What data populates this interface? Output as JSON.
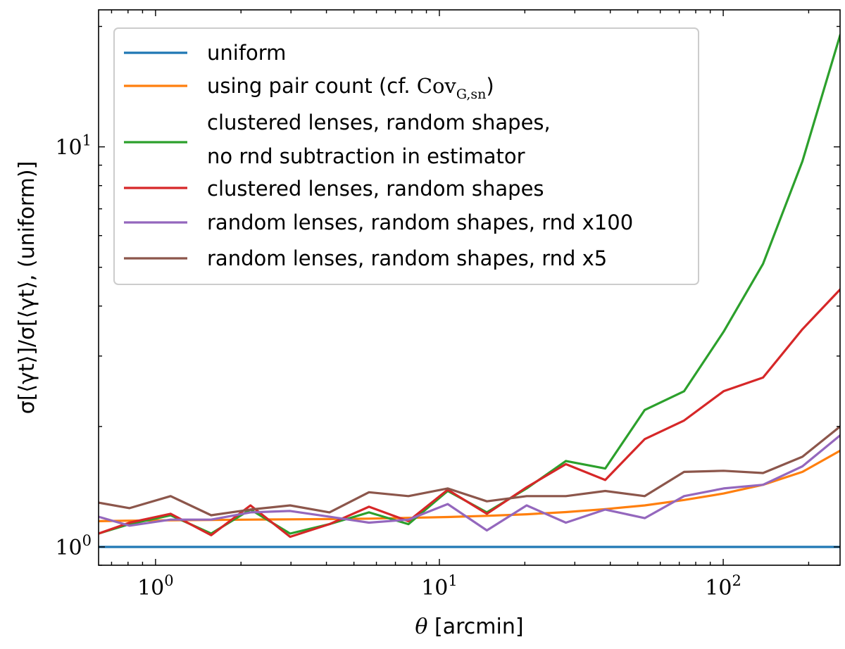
{
  "chart_data": {
    "type": "line",
    "xscale": "log",
    "yscale": "log",
    "xlim": [
      0.63,
      258
    ],
    "ylim": [
      0.9,
      22
    ],
    "x_ticks": [
      {
        "value": 1,
        "label_base": "10",
        "label_exp": "0"
      },
      {
        "value": 10,
        "label_base": "10",
        "label_exp": "1"
      },
      {
        "value": 100,
        "label_base": "10",
        "label_exp": "2"
      }
    ],
    "y_ticks": [
      {
        "value": 1,
        "label_base": "10",
        "label_exp": "0"
      },
      {
        "value": 10,
        "label_base": "10",
        "label_exp": "1"
      }
    ],
    "xlabel": {
      "symbol": "θ",
      "text": "[arcmin]"
    },
    "ylabel": "σ[⟨γt⟩]/σ[⟨γt⟩, (uniform)]",
    "grid": false,
    "legend_position": "top-left",
    "x": [
      0.63,
      0.81,
      1.13,
      1.57,
      2.16,
      2.98,
      4.1,
      5.65,
      7.78,
      10.7,
      14.7,
      20.3,
      27.9,
      38.4,
      52.9,
      72.8,
      100.3,
      138.1,
      190.1,
      258
    ],
    "series": [
      {
        "name": "uniform",
        "color": "#1f77b4",
        "values": [
          1,
          1,
          1,
          1,
          1,
          1,
          1,
          1,
          1,
          1,
          1,
          1,
          1,
          1,
          1,
          1,
          1,
          1,
          1,
          1
        ]
      },
      {
        "name": "using pair count (cf. ",
        "name_math": "Cov",
        "name_sub": "G,sn",
        "name_tail": ")",
        "color": "#ff7f0e",
        "values": [
          1.16,
          1.163,
          1.166,
          1.168,
          1.17,
          1.172,
          1.174,
          1.177,
          1.182,
          1.188,
          1.196,
          1.207,
          1.222,
          1.243,
          1.27,
          1.31,
          1.36,
          1.43,
          1.54,
          1.74
        ]
      },
      {
        "name": "clustered lenses, random shapes,",
        "name_line2": "no rnd subtraction in estimator",
        "color": "#2ca02c",
        "values": [
          1.08,
          1.14,
          1.2,
          1.08,
          1.24,
          1.08,
          1.14,
          1.22,
          1.14,
          1.38,
          1.22,
          1.4,
          1.64,
          1.57,
          2.2,
          2.45,
          3.45,
          5.1,
          9.2,
          19.0
        ]
      },
      {
        "name": "clustered lenses, random shapes",
        "color": "#d62728",
        "values": [
          1.08,
          1.15,
          1.21,
          1.07,
          1.27,
          1.06,
          1.14,
          1.26,
          1.16,
          1.39,
          1.21,
          1.41,
          1.61,
          1.47,
          1.86,
          2.07,
          2.45,
          2.65,
          3.5,
          4.4
        ]
      },
      {
        "name": "random lenses, random shapes, rnd x100",
        "color": "#9467bd",
        "values": [
          1.19,
          1.13,
          1.17,
          1.17,
          1.22,
          1.23,
          1.19,
          1.15,
          1.17,
          1.28,
          1.1,
          1.27,
          1.15,
          1.24,
          1.18,
          1.34,
          1.4,
          1.43,
          1.59,
          1.9
        ]
      },
      {
        "name": "random lenses, random shapes, rnd x5",
        "color": "#8c564b",
        "values": [
          1.29,
          1.25,
          1.34,
          1.2,
          1.24,
          1.27,
          1.22,
          1.37,
          1.34,
          1.4,
          1.3,
          1.34,
          1.34,
          1.38,
          1.34,
          1.54,
          1.55,
          1.53,
          1.68,
          2.0
        ]
      }
    ]
  }
}
